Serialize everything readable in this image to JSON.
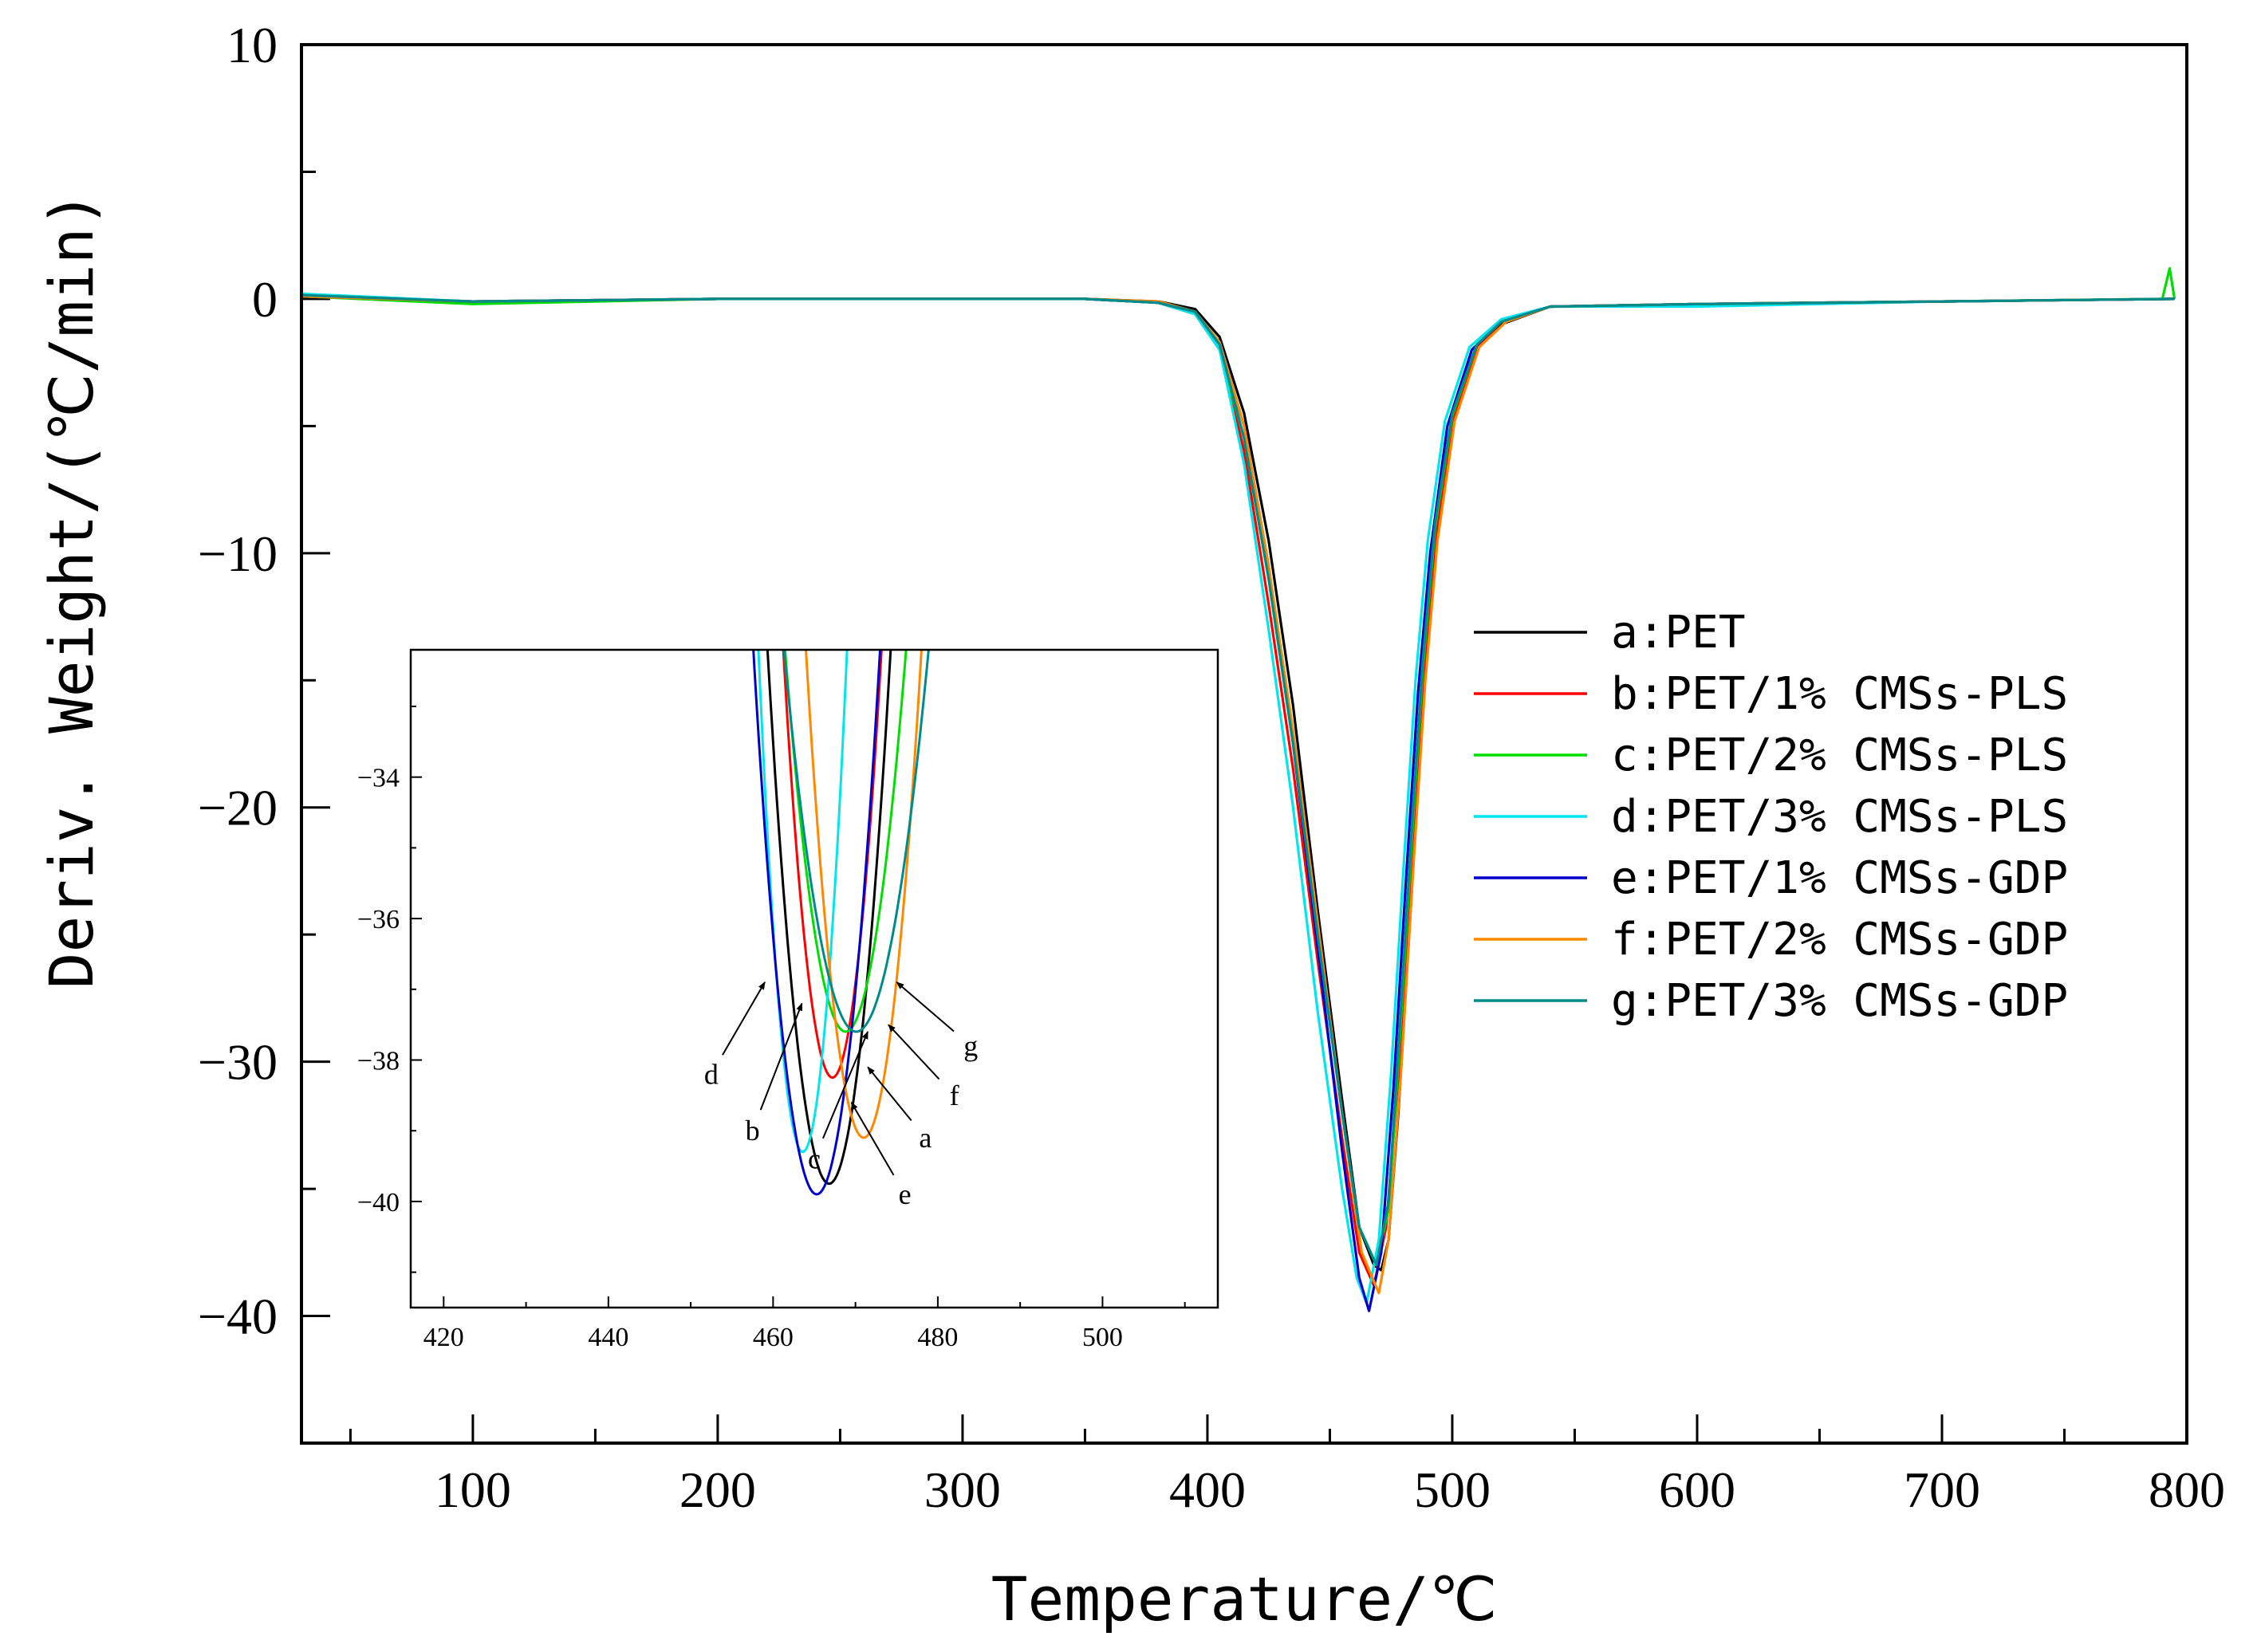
{
  "chart_data": {
    "type": "line",
    "title": "",
    "xlabel": "Temperature/℃",
    "ylabel": "Deriv. Weight/(℃/min)",
    "xlim": [
      30,
      800
    ],
    "ylim": [
      -45,
      10
    ],
    "x_ticks": [
      100,
      200,
      300,
      400,
      500,
      600,
      700,
      800
    ],
    "y_ticks": [
      10,
      0,
      -10,
      -20,
      -30,
      -40
    ],
    "legend_position": "center-right",
    "series": [
      {
        "key": "a",
        "name": "a:PET",
        "color": "#000000",
        "peak_x": 471,
        "peak_y": -38.2,
        "points": [
          [
            30,
            0.1
          ],
          [
            100,
            -0.1
          ],
          [
            200,
            0
          ],
          [
            300,
            0
          ],
          [
            350,
            0
          ],
          [
            380,
            -0.1
          ],
          [
            395,
            -0.4
          ],
          [
            405,
            -1.5
          ],
          [
            415,
            -4.5
          ],
          [
            425,
            -9.5
          ],
          [
            435,
            -16
          ],
          [
            445,
            -24
          ],
          [
            455,
            -31.5
          ],
          [
            462,
            -36.5
          ],
          [
            468,
            -38
          ],
          [
            471,
            -38.2
          ],
          [
            474,
            -37
          ],
          [
            478,
            -32
          ],
          [
            483,
            -24
          ],
          [
            488,
            -16
          ],
          [
            493,
            -10
          ],
          [
            500,
            -5
          ],
          [
            510,
            -2
          ],
          [
            520,
            -1
          ],
          [
            540,
            -0.3
          ],
          [
            600,
            -0.2
          ],
          [
            700,
            -0.1
          ],
          [
            795,
            0
          ]
        ]
      },
      {
        "key": "b",
        "name": "b:PET/1% CMSs-PLS",
        "color": "#ff0000",
        "peak_x": 468,
        "peak_y": -38.8,
        "points": [
          [
            30,
            0.1
          ],
          [
            100,
            -0.1
          ],
          [
            200,
            0
          ],
          [
            300,
            0
          ],
          [
            350,
            0
          ],
          [
            380,
            -0.15
          ],
          [
            395,
            -0.6
          ],
          [
            405,
            -2
          ],
          [
            415,
            -6
          ],
          [
            425,
            -12
          ],
          [
            435,
            -18.5
          ],
          [
            445,
            -26
          ],
          [
            455,
            -33
          ],
          [
            462,
            -37.5
          ],
          [
            468,
            -38.8
          ],
          [
            473,
            -36.5
          ],
          [
            478,
            -30.5
          ],
          [
            483,
            -22.5
          ],
          [
            488,
            -15
          ],
          [
            493,
            -9.5
          ],
          [
            500,
            -4.8
          ],
          [
            510,
            -1.9
          ],
          [
            520,
            -0.9
          ],
          [
            540,
            -0.3
          ],
          [
            600,
            -0.2
          ],
          [
            700,
            -0.1
          ],
          [
            795,
            0
          ]
        ]
      },
      {
        "key": "c",
        "name": "c:PET/2% CMSs-PLS",
        "color": "#00dd00",
        "peak_x": 469,
        "peak_y": -38.0,
        "points": [
          [
            30,
            0.1
          ],
          [
            100,
            -0.2
          ],
          [
            200,
            0
          ],
          [
            300,
            0
          ],
          [
            350,
            0
          ],
          [
            380,
            -0.15
          ],
          [
            395,
            -0.6
          ],
          [
            405,
            -2
          ],
          [
            415,
            -5.5
          ],
          [
            425,
            -11
          ],
          [
            435,
            -17.5
          ],
          [
            445,
            -25
          ],
          [
            455,
            -32
          ],
          [
            462,
            -36.5
          ],
          [
            469,
            -38
          ],
          [
            474,
            -35.8
          ],
          [
            478,
            -30
          ],
          [
            483,
            -22
          ],
          [
            488,
            -14.5
          ],
          [
            493,
            -9
          ],
          [
            500,
            -4.6
          ],
          [
            510,
            -1.8
          ],
          [
            520,
            -0.9
          ],
          [
            540,
            -0.3
          ],
          [
            600,
            -0.2
          ],
          [
            700,
            -0.1
          ],
          [
            790,
            0
          ],
          [
            793,
            1.2
          ],
          [
            795,
            0
          ]
        ]
      },
      {
        "key": "d",
        "name": "d:PET/3% CMSs-PLS",
        "color": "#00e5ee",
        "peak_x": 465,
        "peak_y": -39.5,
        "points": [
          [
            30,
            0.2
          ],
          [
            100,
            -0.1
          ],
          [
            200,
            0
          ],
          [
            300,
            0
          ],
          [
            350,
            0
          ],
          [
            380,
            -0.15
          ],
          [
            395,
            -0.6
          ],
          [
            405,
            -2
          ],
          [
            415,
            -6.5
          ],
          [
            425,
            -13
          ],
          [
            435,
            -20
          ],
          [
            445,
            -28
          ],
          [
            455,
            -35
          ],
          [
            461,
            -38.5
          ],
          [
            465,
            -39.5
          ],
          [
            470,
            -37
          ],
          [
            475,
            -30.5
          ],
          [
            480,
            -22.5
          ],
          [
            485,
            -15
          ],
          [
            490,
            -9.5
          ],
          [
            497,
            -4.8
          ],
          [
            507,
            -1.9
          ],
          [
            520,
            -0.8
          ],
          [
            540,
            -0.3
          ],
          [
            600,
            -0.3
          ],
          [
            700,
            -0.1
          ],
          [
            795,
            0
          ]
        ]
      },
      {
        "key": "e",
        "name": "e:PET/1% CMSs-GDP",
        "color": "#0000cc",
        "peak_x": 466,
        "peak_y": -39.8,
        "points": [
          [
            30,
            0.1
          ],
          [
            100,
            -0.1
          ],
          [
            200,
            0
          ],
          [
            300,
            0
          ],
          [
            350,
            0
          ],
          [
            380,
            -0.15
          ],
          [
            395,
            -0.5
          ],
          [
            405,
            -1.8
          ],
          [
            415,
            -5
          ],
          [
            425,
            -10.5
          ],
          [
            435,
            -17.5
          ],
          [
            445,
            -25.5
          ],
          [
            455,
            -33.5
          ],
          [
            462,
            -38.5
          ],
          [
            466,
            -39.8
          ],
          [
            471,
            -37.5
          ],
          [
            476,
            -31
          ],
          [
            481,
            -23
          ],
          [
            486,
            -15.5
          ],
          [
            491,
            -10
          ],
          [
            498,
            -5
          ],
          [
            508,
            -2
          ],
          [
            520,
            -0.9
          ],
          [
            540,
            -0.3
          ],
          [
            600,
            -0.2
          ],
          [
            700,
            -0.1
          ],
          [
            795,
            0
          ]
        ]
      },
      {
        "key": "f",
        "name": "f:PET/2% CMSs-GDP",
        "color": "#ff8800",
        "peak_x": 470,
        "peak_y": -39.1,
        "points": [
          [
            30,
            0.1
          ],
          [
            100,
            -0.1
          ],
          [
            200,
            0
          ],
          [
            300,
            0
          ],
          [
            350,
            0
          ],
          [
            380,
            -0.1
          ],
          [
            395,
            -0.5
          ],
          [
            405,
            -1.7
          ],
          [
            415,
            -5
          ],
          [
            425,
            -10.5
          ],
          [
            435,
            -17
          ],
          [
            445,
            -24.5
          ],
          [
            455,
            -32
          ],
          [
            463,
            -37.5
          ],
          [
            470,
            -39.1
          ],
          [
            474,
            -37
          ],
          [
            479,
            -30.5
          ],
          [
            484,
            -22.5
          ],
          [
            489,
            -15
          ],
          [
            494,
            -9.5
          ],
          [
            501,
            -4.8
          ],
          [
            511,
            -1.9
          ],
          [
            522,
            -0.9
          ],
          [
            540,
            -0.3
          ],
          [
            600,
            -0.2
          ],
          [
            700,
            -0.1
          ],
          [
            795,
            0
          ]
        ]
      },
      {
        "key": "g",
        "name": "g:PET/3% CMSs-GDP",
        "color": "#008b8b",
        "peak_x": 469,
        "peak_y": -38.0,
        "points": [
          [
            30,
            0.15
          ],
          [
            100,
            -0.1
          ],
          [
            200,
            0
          ],
          [
            300,
            0
          ],
          [
            350,
            0
          ],
          [
            380,
            -0.15
          ],
          [
            395,
            -0.5
          ],
          [
            405,
            -1.8
          ],
          [
            415,
            -5.5
          ],
          [
            425,
            -11
          ],
          [
            435,
            -17.5
          ],
          [
            445,
            -25
          ],
          [
            455,
            -32
          ],
          [
            462,
            -36.5
          ],
          [
            469,
            -38
          ],
          [
            474,
            -35.5
          ],
          [
            478,
            -29.5
          ],
          [
            483,
            -21.5
          ],
          [
            488,
            -14.2
          ],
          [
            493,
            -8.8
          ],
          [
            500,
            -4.5
          ],
          [
            510,
            -1.8
          ],
          [
            520,
            -0.9
          ],
          [
            540,
            -0.3
          ],
          [
            600,
            -0.2
          ],
          [
            700,
            -0.1
          ],
          [
            795,
            0
          ]
        ]
      }
    ],
    "inset": {
      "xlim": [
        416,
        514
      ],
      "ylim": [
        -41.5,
        -32.2
      ],
      "x_ticks": [
        420,
        440,
        460,
        480,
        500
      ],
      "y_ticks": [
        -34,
        -36,
        -38,
        -40
      ],
      "curves": [
        {
          "key": "a",
          "color": "#000000",
          "a": 0.135,
          "x0": 466.8,
          "y0": -39.75
        },
        {
          "key": "b",
          "color": "#ff0000",
          "a": 0.17,
          "x0": 467.2,
          "y0": -38.25
        },
        {
          "key": "c",
          "color": "#00dd00",
          "a": 0.1,
          "x0": 468.8,
          "y0": -37.6
        },
        {
          "key": "d",
          "color": "#00e5ee",
          "a": 0.245,
          "x0": 463.6,
          "y0": -39.3
        },
        {
          "key": "e",
          "color": "#0000cc",
          "a": 0.13,
          "x0": 465.3,
          "y0": -39.9
        },
        {
          "key": "f",
          "color": "#ff8800",
          "a": 0.14,
          "x0": 471,
          "y0": -39.1
        },
        {
          "key": "g",
          "color": "#008b8b",
          "a": 0.07,
          "x0": 470.1,
          "y0": -37.6
        }
      ],
      "annotations": [
        {
          "letter": "d",
          "text_x": 452.5,
          "text_y": -38.2,
          "tip_x": 459,
          "tip_y": -36.9
        },
        {
          "letter": "b",
          "text_x": 457.5,
          "text_y": -39.0,
          "tip_x": 463.5,
          "tip_y": -37.2
        },
        {
          "letter": "c",
          "text_x": 465,
          "text_y": -39.4,
          "tip_x": 471.5,
          "tip_y": -37.6
        },
        {
          "letter": "g",
          "text_x": 484,
          "text_y": -37.8,
          "tip_x": 475,
          "tip_y": -36.9
        },
        {
          "letter": "f",
          "text_x": 482,
          "text_y": -38.5,
          "tip_x": 474,
          "tip_y": -37.5
        },
        {
          "letter": "a",
          "text_x": 478.5,
          "text_y": -39.1,
          "tip_x": 471.5,
          "tip_y": -38.1
        },
        {
          "letter": "e",
          "text_x": 476,
          "text_y": -39.9,
          "tip_x": 469.5,
          "tip_y": -38.6
        }
      ]
    }
  }
}
